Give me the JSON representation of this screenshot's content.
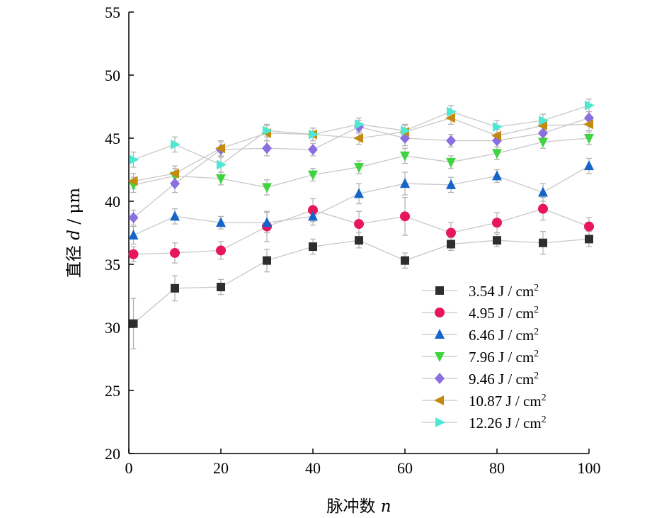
{
  "chart_data": {
    "type": "scatter",
    "xlabel": "脉冲数 n",
    "xlabel_main": "脉冲数 ",
    "xlabel_var": "n",
    "ylabel_main": "直径 ",
    "ylabel_var": "d",
    "ylabel_unit": " / μm",
    "xlim": [
      0,
      100
    ],
    "ylim": [
      20,
      55
    ],
    "xticks": [
      0,
      20,
      40,
      60,
      80,
      100
    ],
    "yticks": [
      20,
      25,
      30,
      35,
      40,
      45,
      50,
      55
    ],
    "legend_position": "bottom-right",
    "x": [
      1,
      10,
      20,
      30,
      40,
      50,
      60,
      70,
      80,
      90,
      100
    ],
    "series": [
      {
        "name": "3.54 J / cm",
        "sup": "2",
        "marker": "square",
        "color": "#2e2e2e",
        "values": [
          30.3,
          33.1,
          33.2,
          35.3,
          36.4,
          36.9,
          35.3,
          36.6,
          36.9,
          36.7,
          37.0
        ],
        "err": [
          2.0,
          1.0,
          0.6,
          0.9,
          0.6,
          0.6,
          0.6,
          0.5,
          0.5,
          0.9,
          0.6
        ]
      },
      {
        "name": "4.95 J / cm",
        "sup": "2",
        "marker": "circle",
        "color": "#e8175d",
        "values": [
          35.8,
          35.9,
          36.1,
          38.0,
          39.3,
          38.2,
          38.8,
          37.5,
          38.3,
          39.4,
          38.0
        ],
        "err": [
          0.6,
          0.8,
          0.7,
          1.2,
          0.9,
          1.0,
          1.5,
          0.8,
          0.8,
          0.9,
          0.7
        ]
      },
      {
        "name": "6.46 J / cm",
        "sup": "2",
        "marker": "triangle-up",
        "color": "#1565c8",
        "values": [
          37.3,
          38.8,
          38.3,
          38.3,
          38.8,
          40.6,
          41.4,
          41.3,
          42.0,
          40.7,
          42.8
        ],
        "err": [
          0.7,
          0.6,
          0.5,
          0.8,
          0.7,
          0.8,
          0.9,
          0.6,
          0.5,
          0.7,
          0.6
        ]
      },
      {
        "name": "7.96 J / cm",
        "sup": "2",
        "marker": "triangle-down",
        "color": "#3fd43f",
        "values": [
          41.3,
          42.0,
          41.8,
          41.1,
          42.1,
          42.7,
          43.6,
          43.1,
          43.8,
          44.7,
          45.0
        ],
        "err": [
          0.6,
          0.6,
          0.5,
          0.6,
          0.5,
          0.5,
          0.6,
          0.5,
          0.5,
          0.5,
          0.5
        ]
      },
      {
        "name": "9.46 J / cm",
        "sup": "2",
        "marker": "diamond",
        "color": "#8a6fe0",
        "values": [
          38.7,
          41.4,
          44.1,
          44.2,
          44.1,
          45.9,
          45.0,
          44.8,
          44.8,
          45.4,
          46.6
        ],
        "err": [
          0.6,
          0.7,
          0.6,
          0.6,
          0.5,
          0.5,
          0.6,
          0.5,
          0.5,
          0.5,
          0.5
        ]
      },
      {
        "name": "10.87 J / cm",
        "sup": "2",
        "marker": "triangle-left",
        "color": "#c28a10",
        "values": [
          41.6,
          42.2,
          44.2,
          45.4,
          45.3,
          45.0,
          45.5,
          46.6,
          45.2,
          46.0,
          46.1
        ],
        "err": [
          0.6,
          0.6,
          0.6,
          0.6,
          0.5,
          0.5,
          0.5,
          0.5,
          0.5,
          0.5,
          0.5
        ]
      },
      {
        "name": "12.26 J / cm",
        "sup": "2",
        "marker": "triangle-right",
        "color": "#4de8d4",
        "values": [
          43.3,
          44.5,
          42.9,
          45.6,
          45.3,
          46.1,
          45.6,
          47.1,
          45.9,
          46.4,
          47.6
        ],
        "err": [
          0.6,
          0.6,
          0.6,
          0.5,
          0.5,
          0.5,
          0.5,
          0.5,
          0.5,
          0.5,
          0.5
        ]
      }
    ]
  }
}
